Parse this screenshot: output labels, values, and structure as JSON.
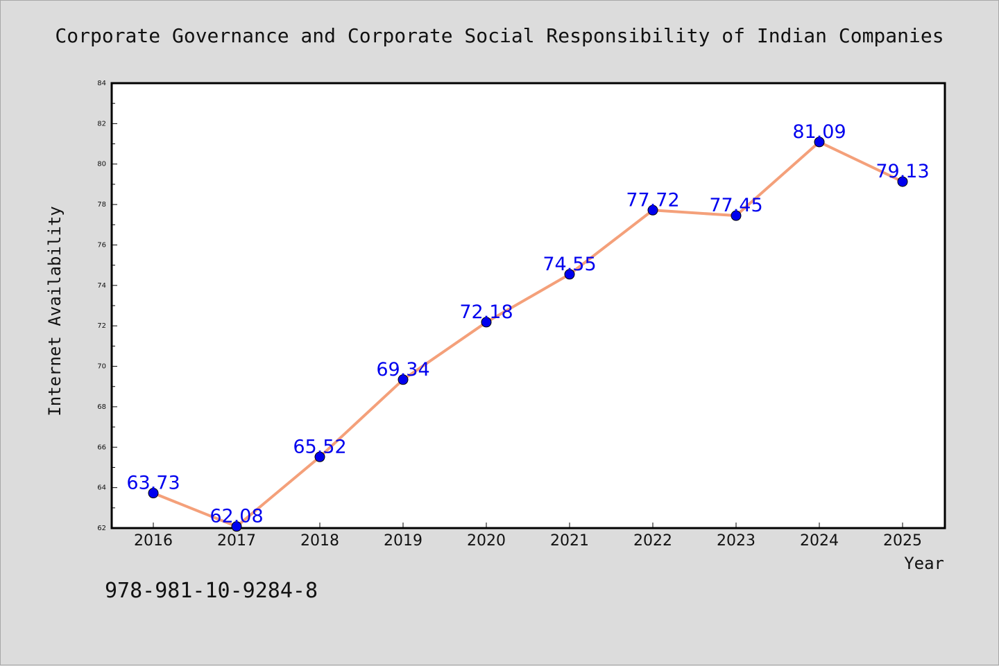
{
  "chart_data": {
    "type": "line",
    "title": "Corporate Governance and Corporate Social Responsibility of Indian Companies",
    "xlabel": "Year",
    "ylabel": "Internet Availability",
    "categories": [
      "2016",
      "2017",
      "2018",
      "2019",
      "2020",
      "2021",
      "2022",
      "2023",
      "2024",
      "2025"
    ],
    "series": [
      {
        "values": [
          63.73,
          62.08,
          65.52,
          69.34,
          72.18,
          74.55,
          77.72,
          77.45,
          81.09,
          79.13
        ]
      }
    ],
    "data_labels": [
      "63.73",
      "62.08",
      "65.52",
      "69.34",
      "72.18",
      "74.55",
      "77.72",
      "77.45",
      "81.09",
      "79.13"
    ],
    "ylim": [
      62,
      84
    ],
    "yticks": [
      "62",
      "64",
      "66",
      "68",
      "70",
      "72",
      "74",
      "76",
      "78",
      "80",
      "82",
      "84"
    ],
    "grid": false,
    "legend": "none",
    "colors": {
      "line": "#f4a07a",
      "marker": "#0000ee",
      "label": "#0000ee",
      "background": "#dcdcdc",
      "plot_area": "#ffffff"
    }
  },
  "footer": {
    "isbn": "978-981-10-9284-8"
  }
}
